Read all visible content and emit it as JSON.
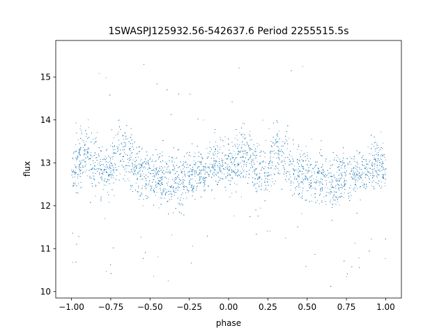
{
  "chart_data": {
    "type": "scatter",
    "title": "1SWASPJ125932.56-542637.6 Period 2255515.5s",
    "xlabel": "phase",
    "ylabel": "flux",
    "xlim": [
      -1.1,
      1.1
    ],
    "ylim": [
      9.85,
      15.85
    ],
    "xticks": [
      -1.0,
      -0.75,
      -0.5,
      -0.25,
      0.0,
      0.25,
      0.5,
      0.75,
      1.0
    ],
    "xtick_labels": [
      "−1.00",
      "−0.75",
      "−0.50",
      "−0.25",
      "0.00",
      "0.25",
      "0.50",
      "0.75",
      "1.00"
    ],
    "yticks": [
      10,
      11,
      12,
      13,
      14,
      15
    ],
    "ytick_labels": [
      "10",
      "11",
      "12",
      "13",
      "14",
      "15"
    ],
    "grid": false,
    "marker_color": "#1f77b4",
    "phase_range": [
      -1.0,
      1.0
    ],
    "baseline_flux": 12.75,
    "profile": [
      {
        "phase": 0.0,
        "flux": 12.85,
        "spread": 0.35
      },
      {
        "phase": 0.05,
        "flux": 13.05,
        "spread": 0.45
      },
      {
        "phase": 0.1,
        "flux": 13.3,
        "spread": 0.5
      },
      {
        "phase": 0.15,
        "flux": 13.0,
        "spread": 0.45
      },
      {
        "phase": 0.2,
        "flux": 12.75,
        "spread": 0.4
      },
      {
        "phase": 0.25,
        "flux": 12.9,
        "spread": 0.45
      },
      {
        "phase": 0.3,
        "flux": 13.3,
        "spread": 0.5
      },
      {
        "phase": 0.35,
        "flux": 13.1,
        "spread": 0.5
      },
      {
        "phase": 0.4,
        "flux": 12.9,
        "spread": 0.45
      },
      {
        "phase": 0.45,
        "flux": 12.8,
        "spread": 0.45
      },
      {
        "phase": 0.5,
        "flux": 12.75,
        "spread": 0.4
      },
      {
        "phase": 0.55,
        "flux": 12.7,
        "spread": 0.45
      },
      {
        "phase": 0.6,
        "flux": 12.6,
        "spread": 0.45
      },
      {
        "phase": 0.65,
        "flux": 12.55,
        "spread": 0.45
      },
      {
        "phase": 0.7,
        "flux": 12.65,
        "spread": 0.45
      },
      {
        "phase": 0.75,
        "flux": 12.7,
        "spread": 0.4
      },
      {
        "phase": 0.8,
        "flux": 12.75,
        "spread": 0.35
      },
      {
        "phase": 0.85,
        "flux": 12.8,
        "spread": 0.4
      },
      {
        "phase": 0.9,
        "flux": 12.95,
        "spread": 0.45
      },
      {
        "phase": 0.95,
        "flux": 13.05,
        "spread": 0.45
      },
      {
        "phase": 1.0,
        "flux": 12.85,
        "spread": 0.35
      }
    ],
    "flux_extremes": [
      10.05,
      15.55
    ]
  }
}
